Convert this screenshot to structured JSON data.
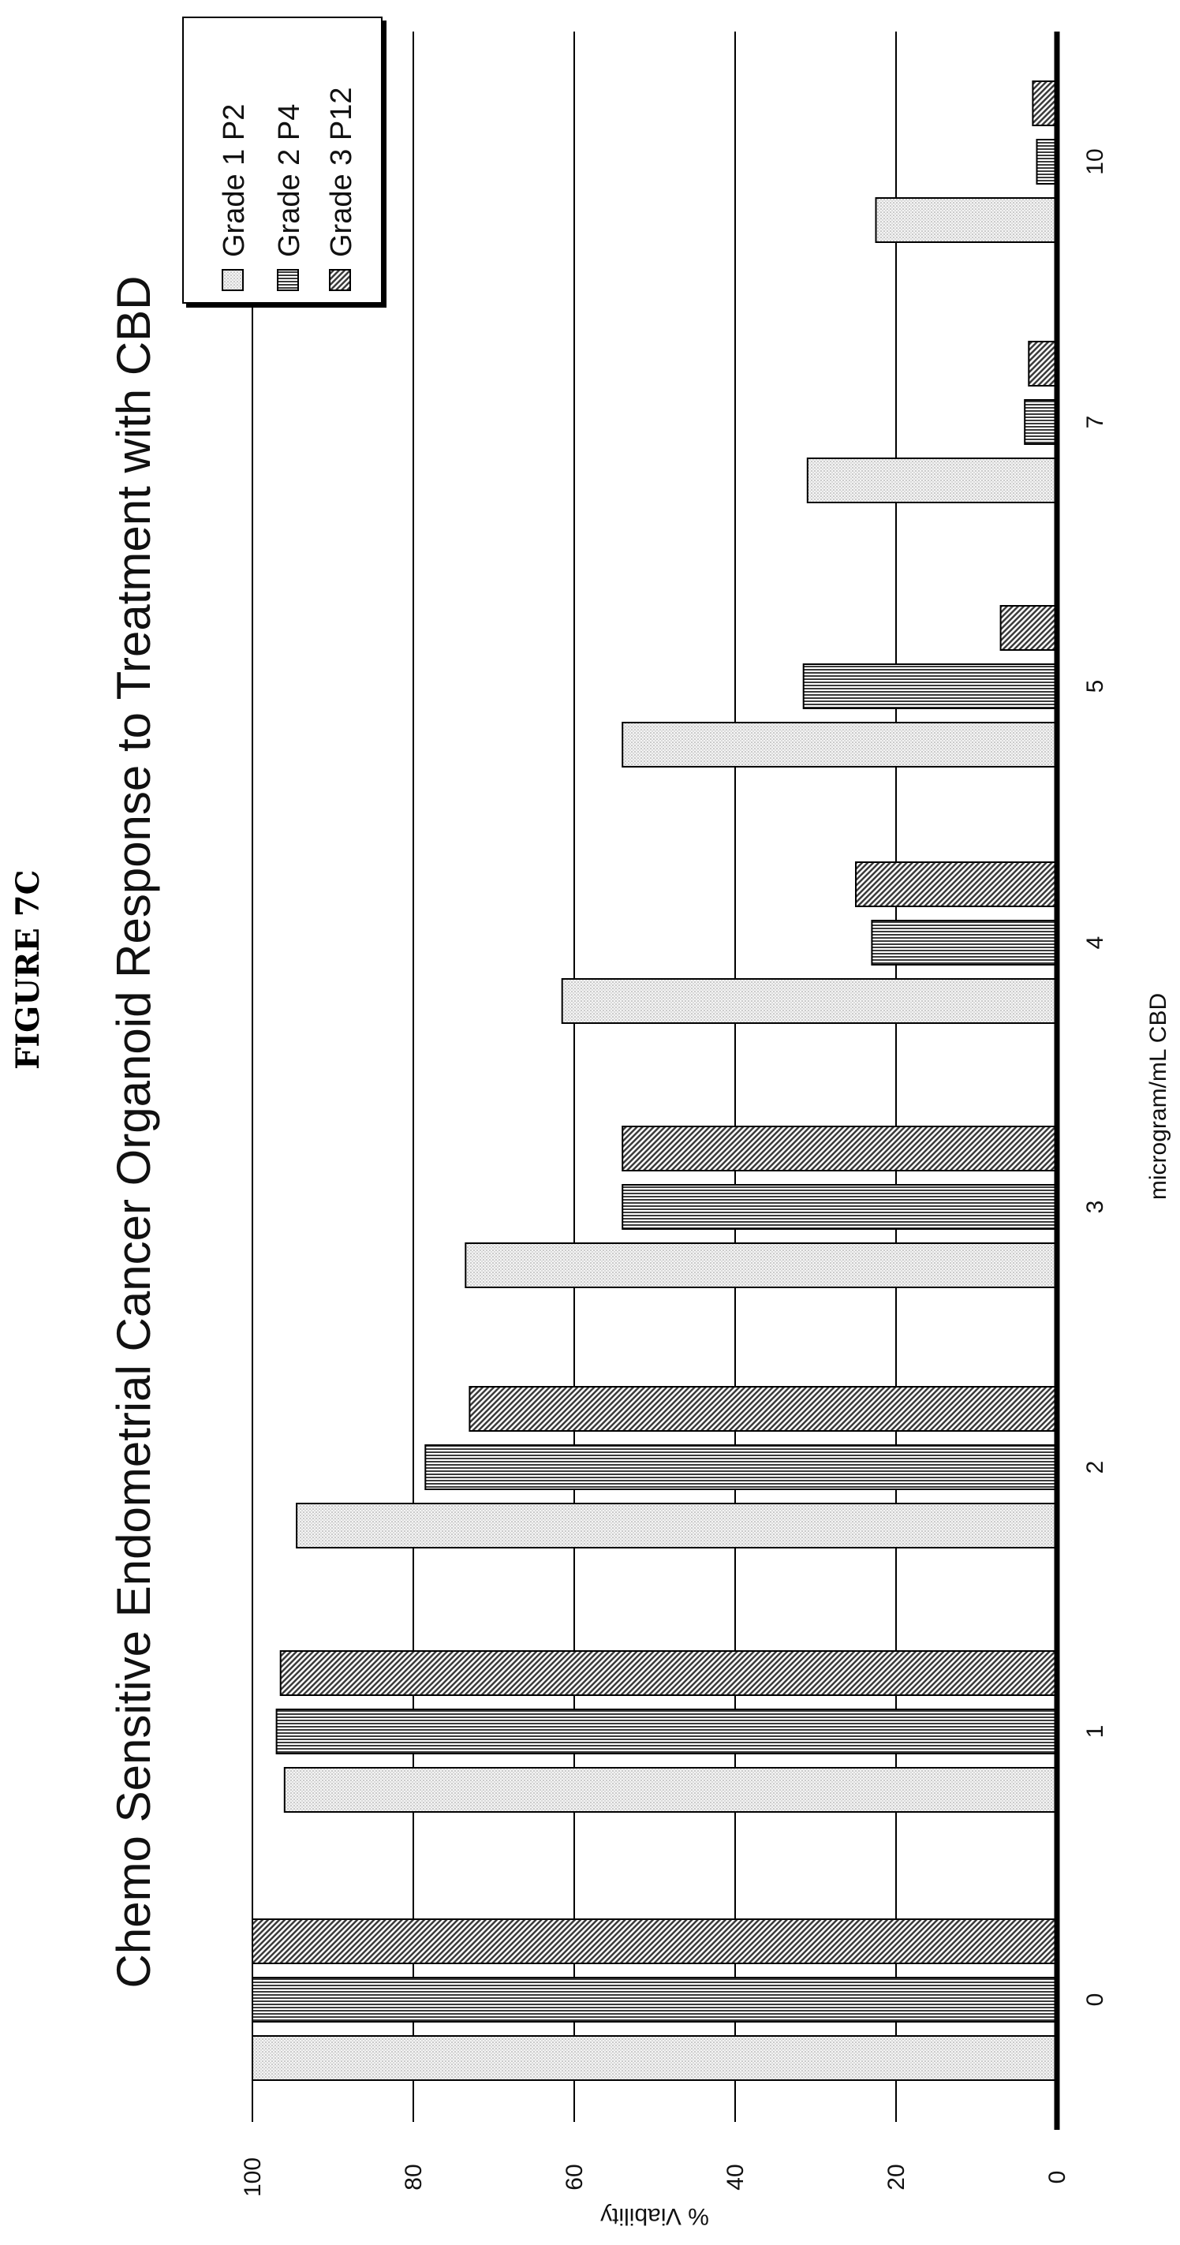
{
  "figure_label": "FIGURE 7C",
  "chart_data": {
    "type": "bar",
    "orientation": "rotated-90-ccw",
    "title": "Chemo Sensitive Endometrial Cancer Organoid Response to Treatment with CBD",
    "xlabel": "microgram/mL CBD",
    "ylabel": "% Viability",
    "ylim": [
      0,
      100
    ],
    "yticks": [
      0,
      20,
      40,
      60,
      80,
      100
    ],
    "grid": true,
    "legend_position": "top-right",
    "categories": [
      "0",
      "1",
      "2",
      "3",
      "4",
      "5",
      "7",
      "10"
    ],
    "series": [
      {
        "name": "Grade 1 P2",
        "pattern": "dots",
        "values": [
          100,
          96,
          94.5,
          73.5,
          61.5,
          54,
          31,
          22.5
        ]
      },
      {
        "name": "Grade 2 P4",
        "pattern": "vertical-lines",
        "values": [
          100,
          97,
          78.5,
          54,
          23,
          31.5,
          4,
          2.5
        ]
      },
      {
        "name": "Grade 3 P12",
        "pattern": "diagonal-lines",
        "values": [
          100,
          96.5,
          73,
          54,
          25,
          7,
          3.5,
          3
        ]
      }
    ]
  }
}
